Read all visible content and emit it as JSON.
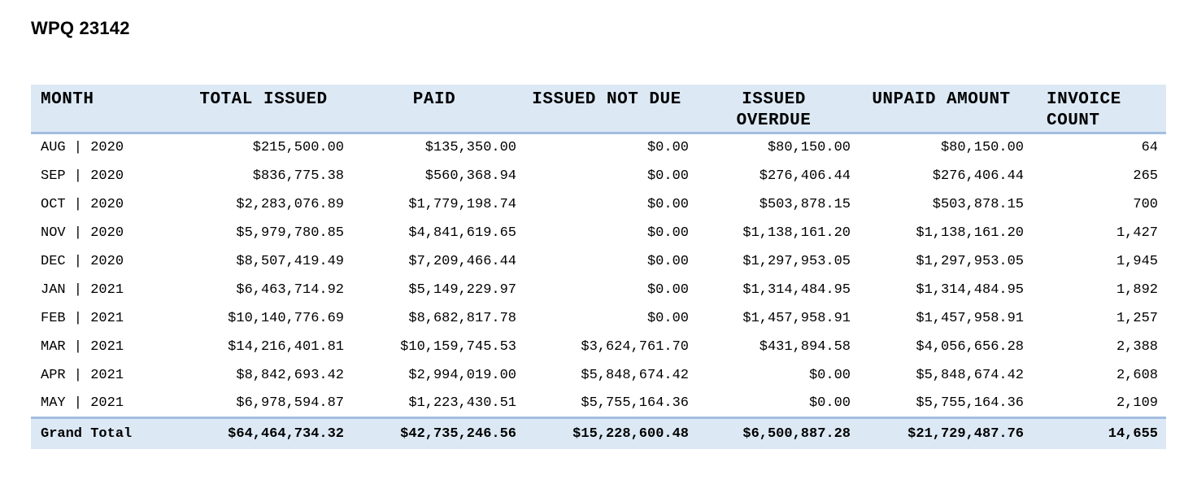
{
  "title": "WPQ 23142",
  "colors": {
    "header_bg": "#dce9f5",
    "rule_blue": "#a3bede",
    "text": "#000000",
    "page_bg": "#ffffff"
  },
  "table": {
    "columns": [
      {
        "label": "MONTH",
        "align": "left"
      },
      {
        "label": "TOTAL ISSUED",
        "align": "center"
      },
      {
        "label": "PAID",
        "align": "center"
      },
      {
        "label": "ISSUED NOT DUE",
        "align": "center"
      },
      {
        "label": "ISSUED\nOVERDUE",
        "align": "center"
      },
      {
        "label": "UNPAID AMOUNT",
        "align": "center"
      },
      {
        "label": "INVOICE\nCOUNT",
        "align": "left"
      }
    ],
    "rows": [
      [
        "AUG | 2020",
        "$215,500.00",
        "$135,350.00",
        "$0.00",
        "$80,150.00",
        "$80,150.00",
        "64"
      ],
      [
        "SEP | 2020",
        "$836,775.38",
        "$560,368.94",
        "$0.00",
        "$276,406.44",
        "$276,406.44",
        "265"
      ],
      [
        "OCT | 2020",
        "$2,283,076.89",
        "$1,779,198.74",
        "$0.00",
        "$503,878.15",
        "$503,878.15",
        "700"
      ],
      [
        "NOV | 2020",
        "$5,979,780.85",
        "$4,841,619.65",
        "$0.00",
        "$1,138,161.20",
        "$1,138,161.20",
        "1,427"
      ],
      [
        "DEC | 2020",
        "$8,507,419.49",
        "$7,209,466.44",
        "$0.00",
        "$1,297,953.05",
        "$1,297,953.05",
        "1,945"
      ],
      [
        "JAN | 2021",
        "$6,463,714.92",
        "$5,149,229.97",
        "$0.00",
        "$1,314,484.95",
        "$1,314,484.95",
        "1,892"
      ],
      [
        "FEB | 2021",
        "$10,140,776.69",
        "$8,682,817.78",
        "$0.00",
        "$1,457,958.91",
        "$1,457,958.91",
        "1,257"
      ],
      [
        "MAR | 2021",
        "$14,216,401.81",
        "$10,159,745.53",
        "$3,624,761.70",
        "$431,894.58",
        "$4,056,656.28",
        "2,388"
      ],
      [
        "APR | 2021",
        "$8,842,693.42",
        "$2,994,019.00",
        "$5,848,674.42",
        "$0.00",
        "$5,848,674.42",
        "2,608"
      ],
      [
        "MAY | 2021",
        "$6,978,594.87",
        "$1,223,430.51",
        "$5,755,164.36",
        "$0.00",
        "$5,755,164.36",
        "2,109"
      ]
    ],
    "grand_total": [
      "Grand Total",
      "$64,464,734.32",
      "$42,735,246.56",
      "$15,228,600.48",
      "$6,500,887.28",
      "$21,729,487.76",
      "14,655"
    ]
  }
}
